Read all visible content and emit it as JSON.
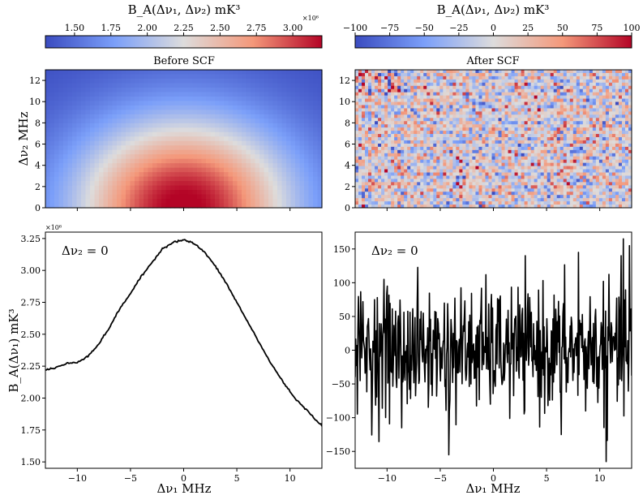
{
  "chart_data": [
    {
      "type": "heatmap",
      "title": "Before SCF",
      "xlabel": "",
      "ylabel": "Δν₂ MHz",
      "xlim": [
        -13,
        13
      ],
      "ylim": [
        0,
        13
      ],
      "yticks": [
        0,
        2,
        4,
        6,
        8,
        10,
        12
      ],
      "xticks": [
        -10,
        -5,
        0,
        5,
        10
      ],
      "show_xticklabels": false,
      "colorscale": "coolwarm",
      "field": {
        "peak_x": 0,
        "peak_y": 0,
        "peak_value": 3250000.0,
        "min_value": 1300000.0,
        "x_scale_MHz": 11,
        "y_scale_MHz": 9
      },
      "colorbar": {
        "label": "B_A(Δν₁, Δν₂) mK³",
        "range": [
          1300000.0,
          3200000.0
        ],
        "ticks": [
          1500000.0,
          1750000.0,
          2000000.0,
          2250000.0,
          2500000.0,
          2750000.0,
          3000000.0
        ],
        "tick_labels": [
          "1.50",
          "1.75",
          "2.00",
          "2.25",
          "2.50",
          "2.75",
          "3.00"
        ],
        "multiplier": "×10⁶"
      }
    },
    {
      "type": "heatmap",
      "title": "After SCF",
      "xlabel": "",
      "ylabel": "",
      "xlim": [
        -13,
        13
      ],
      "ylim": [
        0,
        13
      ],
      "yticks": [
        0,
        2,
        4,
        6,
        8,
        10,
        12
      ],
      "xticks": [
        -10,
        -5,
        0,
        5,
        10
      ],
      "show_xticklabels": false,
      "colorscale": "coolwarm",
      "field": {
        "noise_std": 35
      },
      "colorbar": {
        "label": "B_A(Δν₁, Δν₂) mK³",
        "range": [
          -100,
          100
        ],
        "ticks": [
          -100,
          -75,
          -50,
          -25,
          0,
          25,
          50,
          75,
          100
        ],
        "tick_labels": [
          "−100",
          "−75",
          "−50",
          "−25",
          "0",
          "25",
          "50",
          "75",
          "100"
        ]
      }
    },
    {
      "type": "line",
      "title": "",
      "annotation": "Δν₂ = 0",
      "xlabel": "Δν₁ MHz",
      "ylabel": "B_A(Δν₁) mK³",
      "xlim": [
        -13,
        13
      ],
      "ylim": [
        1450000.0,
        3300000.0
      ],
      "xticks": [
        -10,
        -5,
        0,
        5,
        10
      ],
      "xtick_labels": [
        "−10",
        "−5",
        "0",
        "5",
        "10"
      ],
      "yticks": [
        1500000.0,
        1750000.0,
        2000000.0,
        2250000.0,
        2500000.0,
        2750000.0,
        3000000.0,
        3250000.0
      ],
      "ytick_labels": [
        "1.50",
        "1.75",
        "2.00",
        "2.25",
        "2.50",
        "2.75",
        "3.00",
        "3.25"
      ],
      "multiplier": "×10⁶",
      "series": [
        {
          "name": "Before SCF, Δν₂ = 0",
          "x": [
            -13,
            -12,
            -11,
            -10,
            -9,
            -8,
            -7,
            -6,
            -5,
            -4,
            -3,
            -2,
            -1,
            0,
            1,
            2,
            3,
            4,
            5,
            6,
            7,
            8,
            9,
            10,
            11,
            12,
            13
          ],
          "values": [
            2220000.0,
            2240000.0,
            2270000.0,
            2280000.0,
            2330000.0,
            2420000.0,
            2550000.0,
            2700000.0,
            2820000.0,
            2950000.0,
            3060000.0,
            3170000.0,
            3220000.0,
            3240000.0,
            3210000.0,
            3140000.0,
            3030000.0,
            2900000.0,
            2750000.0,
            2600000.0,
            2450000.0,
            2300000.0,
            2170000.0,
            2050000.0,
            1950000.0,
            1870000.0,
            1780000.0
          ]
        }
      ]
    },
    {
      "type": "line",
      "title": "",
      "annotation": "Δν₂ = 0",
      "xlabel": "Δν₁ MHz",
      "ylabel": "",
      "xlim": [
        -13,
        13
      ],
      "ylim": [
        -175,
        175
      ],
      "xticks": [
        -10,
        -5,
        0,
        5,
        10
      ],
      "xtick_labels": [
        "−10",
        "−5",
        "0",
        "5",
        "10"
      ],
      "yticks": [
        -150,
        -100,
        -50,
        0,
        50,
        100,
        150
      ],
      "ytick_labels": [
        "−150",
        "−100",
        "−50",
        "0",
        "50",
        "100",
        "150"
      ],
      "series": [
        {
          "name": "After SCF, Δν₂ = 0",
          "n_points": 500,
          "noise_std": 45,
          "extremes": [
            {
              "x": -4.2,
              "y": -155
            },
            {
              "x": 10.6,
              "y": -165
            },
            {
              "x": 12.2,
              "y": 165
            },
            {
              "x": 8,
              "y": 145
            },
            {
              "x": 12.8,
              "y": 155
            },
            {
              "x": -10.3,
              "y": 105
            },
            {
              "x": -8.6,
              "y": -115
            },
            {
              "x": 6.4,
              "y": -125
            }
          ]
        }
      ]
    }
  ]
}
